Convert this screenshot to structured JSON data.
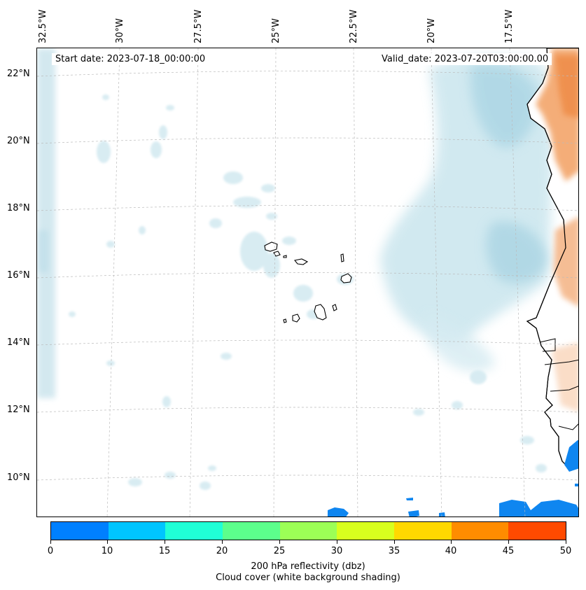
{
  "map": {
    "start_date": "Start date: 2023-07-18_00:00:00",
    "valid_date": "Valid_date: 2023-07-20T03:00:00.00",
    "lon_labels": [
      "32.5°W",
      "30°W",
      "27.5°W",
      "25°W",
      "22.5°W",
      "20°W",
      "17.5°W"
    ],
    "lat_labels": [
      "22°N",
      "20°N",
      "18°N",
      "16°N",
      "14°N",
      "12°N",
      "10°N"
    ],
    "gridlines": true
  },
  "colorbar": {
    "tick_labels": [
      "0",
      "10",
      "15",
      "20",
      "25",
      "30",
      "35",
      "40",
      "45",
      "50"
    ],
    "colors": [
      "#0080ff",
      "#00c5ff",
      "#20ffd6",
      "#5cff8c",
      "#9cff56",
      "#d8ff1e",
      "#ffd800",
      "#ff8c00",
      "#ff4a00"
    ],
    "label": "200 hPa reflectivity (dbz)",
    "sublabel": "Cloud cover (white background shading)"
  }
}
